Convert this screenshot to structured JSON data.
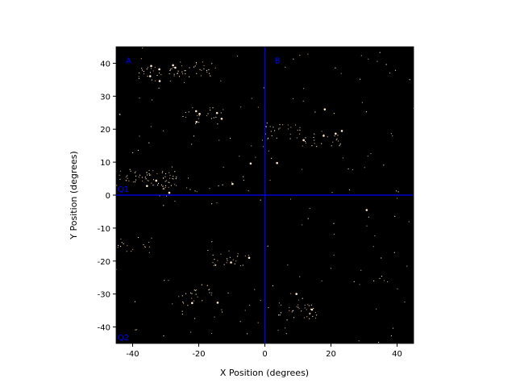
{
  "chart_data": {
    "type": "image",
    "x_label": "X Position (degrees)",
    "y_label": "Y Position (degrees)",
    "xlim": [
      -45,
      45
    ],
    "ylim": [
      -45,
      45
    ],
    "xticks": [
      -40,
      -20,
      0,
      20,
      40
    ],
    "yticks": [
      -40,
      -30,
      -20,
      -10,
      0,
      10,
      20,
      30,
      40
    ],
    "background": "#000000",
    "reference_lines": [
      {
        "axis": "x",
        "value": 0,
        "color": "#0000ff"
      },
      {
        "axis": "y",
        "value": 0,
        "color": "#0000ff"
      }
    ],
    "annotations": [
      {
        "text": "A",
        "x": -42,
        "y": 41
      },
      {
        "text": "B",
        "x": 3,
        "y": 41
      },
      {
        "text": "Q1",
        "x": -44.5,
        "y": 2
      },
      {
        "text": "Q2",
        "x": -44.5,
        "y": -43
      }
    ],
    "annotation_color": "#0000ff"
  }
}
